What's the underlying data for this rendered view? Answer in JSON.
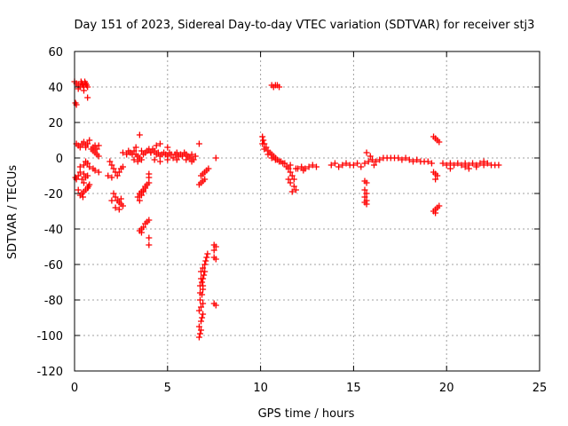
{
  "chart_data": {
    "type": "scatter",
    "title": "Day 151 of 2023, Sidereal Day-to-day VTEC variation (SDTVAR) for receiver stj3",
    "xlabel": "GPS time / hours",
    "ylabel": "SDTVAR / TECUs",
    "xlim": [
      0,
      25
    ],
    "ylim": [
      -120,
      60
    ],
    "xticks": [
      0,
      5,
      10,
      15,
      20,
      25
    ],
    "yticks": [
      -120,
      -100,
      -80,
      -60,
      -40,
      -20,
      0,
      20,
      40,
      60
    ],
    "xtick_labels": [
      "0",
      "5",
      "10",
      "15",
      "20",
      "25"
    ],
    "ytick_labels": [
      "-120",
      "-100",
      "-80",
      "-60",
      "-40",
      "-20",
      "0",
      "20",
      "40",
      "60"
    ],
    "grid": true,
    "marker": "+",
    "color": "#ff0000",
    "series": [
      {
        "name": "SDTVAR",
        "points": [
          [
            0.0,
            43
          ],
          [
            0.1,
            42
          ],
          [
            0.2,
            41
          ],
          [
            0.3,
            40
          ],
          [
            0.35,
            43
          ],
          [
            0.4,
            42
          ],
          [
            0.45,
            41
          ],
          [
            0.5,
            40
          ],
          [
            0.55,
            43
          ],
          [
            0.6,
            42
          ],
          [
            0.65,
            41
          ],
          [
            0.7,
            40
          ],
          [
            0.2,
            39
          ],
          [
            0.5,
            38
          ],
          [
            0.7,
            34
          ],
          [
            0.05,
            31
          ],
          [
            0.1,
            30
          ],
          [
            0.1,
            8
          ],
          [
            0.2,
            7
          ],
          [
            0.3,
            6
          ],
          [
            0.4,
            8
          ],
          [
            0.5,
            9
          ],
          [
            0.6,
            7
          ],
          [
            0.7,
            8
          ],
          [
            0.8,
            10
          ],
          [
            0.6,
            6
          ],
          [
            0.2,
            -10
          ],
          [
            0.3,
            -8
          ],
          [
            0.4,
            -12
          ],
          [
            0.5,
            -9
          ],
          [
            0.6,
            -11
          ],
          [
            0.7,
            -10
          ],
          [
            0.5,
            -4
          ],
          [
            0.6,
            -2
          ],
          [
            0.7,
            -3
          ],
          [
            0.3,
            -5
          ],
          [
            0.1,
            -12
          ],
          [
            0.05,
            -11
          ],
          [
            0.3,
            -21
          ],
          [
            0.4,
            -20
          ],
          [
            0.5,
            -19
          ],
          [
            0.6,
            -18
          ],
          [
            0.7,
            -17
          ],
          [
            0.75,
            -16
          ],
          [
            0.8,
            -15
          ],
          [
            0.5,
            -14
          ],
          [
            0.2,
            -18
          ],
          [
            0.45,
            -22
          ],
          [
            0.9,
            5
          ],
          [
            1.0,
            4
          ],
          [
            1.1,
            3
          ],
          [
            1.2,
            5
          ],
          [
            1.3,
            7
          ],
          [
            1.2,
            2
          ],
          [
            1.3,
            1
          ],
          [
            1.1,
            7
          ],
          [
            1.0,
            6
          ],
          [
            0.8,
            -5
          ],
          [
            1.0,
            -6
          ],
          [
            1.1,
            -7
          ],
          [
            1.3,
            -8
          ],
          [
            1.9,
            -2
          ],
          [
            2.0,
            -4
          ],
          [
            2.1,
            -6
          ],
          [
            2.2,
            -8
          ],
          [
            2.3,
            -10
          ],
          [
            2.4,
            -8
          ],
          [
            2.5,
            -6
          ],
          [
            2.6,
            -5
          ],
          [
            1.8,
            -10
          ],
          [
            2.0,
            -11
          ],
          [
            2.1,
            -20
          ],
          [
            2.2,
            -22
          ],
          [
            2.3,
            -24
          ],
          [
            2.4,
            -25
          ],
          [
            2.5,
            -26
          ],
          [
            2.6,
            -27
          ],
          [
            2.2,
            -28
          ],
          [
            2.4,
            -29
          ],
          [
            2.5,
            -23
          ],
          [
            2.0,
            -24
          ],
          [
            2.6,
            3
          ],
          [
            2.8,
            2
          ],
          [
            2.9,
            4
          ],
          [
            3.0,
            3
          ],
          [
            3.1,
            2
          ],
          [
            3.2,
            4
          ],
          [
            3.3,
            2
          ],
          [
            3.4,
            1
          ],
          [
            3.5,
            0
          ],
          [
            3.6,
            4
          ],
          [
            3.7,
            2
          ],
          [
            3.8,
            3
          ],
          [
            3.9,
            4
          ],
          [
            4.0,
            5
          ],
          [
            4.1,
            3
          ],
          [
            3.2,
            -1
          ],
          [
            3.4,
            -2
          ],
          [
            3.6,
            -1
          ],
          [
            3.5,
            13
          ],
          [
            3.3,
            6
          ],
          [
            3.4,
            -22
          ],
          [
            3.5,
            -20
          ],
          [
            3.6,
            -19
          ],
          [
            3.7,
            -18
          ],
          [
            3.8,
            -16
          ],
          [
            3.9,
            -15
          ],
          [
            4.0,
            -14
          ],
          [
            3.5,
            -24
          ],
          [
            3.6,
            -21
          ],
          [
            3.7,
            -19
          ],
          [
            3.8,
            -17
          ],
          [
            4.0,
            -9
          ],
          [
            4.0,
            -11
          ],
          [
            3.5,
            -41
          ],
          [
            3.6,
            -40
          ],
          [
            3.7,
            -39
          ],
          [
            3.8,
            -37
          ],
          [
            3.9,
            -36
          ],
          [
            4.0,
            -35
          ],
          [
            3.6,
            -42
          ],
          [
            4.0,
            -45
          ],
          [
            4.0,
            -49
          ],
          [
            4.1,
            3
          ],
          [
            4.2,
            5
          ],
          [
            4.3,
            4
          ],
          [
            4.4,
            2
          ],
          [
            4.5,
            3
          ],
          [
            4.6,
            1
          ],
          [
            4.7,
            2
          ],
          [
            4.8,
            3
          ],
          [
            4.9,
            2
          ],
          [
            5.0,
            1
          ],
          [
            5.1,
            3
          ],
          [
            5.2,
            2
          ],
          [
            5.3,
            0
          ],
          [
            5.4,
            2
          ],
          [
            5.5,
            3
          ],
          [
            5.6,
            1
          ],
          [
            5.7,
            2
          ],
          [
            5.8,
            1
          ],
          [
            5.9,
            3
          ],
          [
            6.0,
            2
          ],
          [
            6.1,
            1
          ],
          [
            6.2,
            0
          ],
          [
            6.3,
            2
          ],
          [
            6.4,
            -1
          ],
          [
            6.5,
            1
          ],
          [
            4.3,
            -1
          ],
          [
            4.6,
            -2
          ],
          [
            5.0,
            -1
          ],
          [
            5.5,
            -1
          ],
          [
            6.0,
            -1
          ],
          [
            6.3,
            -2
          ],
          [
            4.4,
            7
          ],
          [
            4.6,
            8
          ],
          [
            5.0,
            6
          ],
          [
            6.7,
            8
          ],
          [
            6.7,
            -15
          ],
          [
            6.8,
            -14
          ],
          [
            6.9,
            -13
          ],
          [
            7.0,
            -12
          ],
          [
            6.8,
            -10
          ],
          [
            6.9,
            -9
          ],
          [
            7.0,
            -8
          ],
          [
            7.1,
            -7
          ],
          [
            7.2,
            -6
          ],
          [
            7.6,
            0
          ],
          [
            6.7,
            -101
          ],
          [
            6.75,
            -99
          ],
          [
            6.8,
            -97
          ],
          [
            6.7,
            -95
          ],
          [
            6.8,
            -92
          ],
          [
            6.85,
            -90
          ],
          [
            6.9,
            -88
          ],
          [
            6.7,
            -86
          ],
          [
            6.8,
            -84
          ],
          [
            6.9,
            -82
          ],
          [
            6.75,
            -80
          ],
          [
            6.85,
            -77
          ],
          [
            6.9,
            -74
          ],
          [
            6.75,
            -72
          ],
          [
            6.85,
            -70
          ],
          [
            6.9,
            -68
          ],
          [
            6.95,
            -66
          ],
          [
            6.8,
            -64
          ],
          [
            6.9,
            -62
          ],
          [
            7.0,
            -60
          ],
          [
            7.05,
            -58
          ],
          [
            7.1,
            -56
          ],
          [
            7.15,
            -54
          ],
          [
            6.75,
            -76
          ],
          [
            6.8,
            -68
          ],
          [
            6.9,
            -72
          ],
          [
            7.0,
            -64
          ],
          [
            7.5,
            -49
          ],
          [
            7.6,
            -50
          ],
          [
            7.5,
            -52
          ],
          [
            7.6,
            -57
          ],
          [
            7.5,
            -56
          ],
          [
            7.5,
            -82
          ],
          [
            7.6,
            -83
          ],
          [
            10.6,
            41
          ],
          [
            10.7,
            40
          ],
          [
            10.8,
            41
          ],
          [
            10.9,
            41
          ],
          [
            11.0,
            40
          ],
          [
            10.1,
            12
          ],
          [
            10.15,
            10
          ],
          [
            10.2,
            8
          ],
          [
            10.3,
            6
          ],
          [
            10.4,
            4
          ],
          [
            10.5,
            3
          ],
          [
            10.6,
            2
          ],
          [
            10.7,
            1
          ],
          [
            10.8,
            0
          ],
          [
            10.9,
            -1
          ],
          [
            11.0,
            -2
          ],
          [
            11.1,
            -2
          ],
          [
            11.2,
            -3
          ],
          [
            11.3,
            -3
          ],
          [
            10.1,
            8
          ],
          [
            10.2,
            5
          ],
          [
            10.4,
            2
          ],
          [
            10.6,
            0
          ],
          [
            10.8,
            -1
          ],
          [
            11.4,
            -5
          ],
          [
            11.5,
            -6
          ],
          [
            11.6,
            -8
          ],
          [
            11.7,
            -10
          ],
          [
            11.8,
            -12
          ],
          [
            11.5,
            -12
          ],
          [
            11.6,
            -14
          ],
          [
            11.8,
            -16
          ],
          [
            11.9,
            -18
          ],
          [
            11.7,
            -19
          ],
          [
            11.9,
            -6
          ],
          [
            11.6,
            -4
          ],
          [
            12.0,
            -6
          ],
          [
            12.2,
            -5
          ],
          [
            12.4,
            -6
          ],
          [
            12.6,
            -5
          ],
          [
            12.8,
            -4
          ],
          [
            13.0,
            -5
          ],
          [
            12.3,
            -7
          ],
          [
            13.8,
            -4
          ],
          [
            14.0,
            -3
          ],
          [
            14.2,
            -5
          ],
          [
            14.4,
            -4
          ],
          [
            14.6,
            -3
          ],
          [
            14.8,
            -4
          ],
          [
            15.0,
            -4
          ],
          [
            15.2,
            -3
          ],
          [
            15.4,
            -5
          ],
          [
            15.6,
            -3
          ],
          [
            15.8,
            -2
          ],
          [
            16.0,
            -1
          ],
          [
            16.2,
            -2
          ],
          [
            16.4,
            -1
          ],
          [
            16.6,
            0
          ],
          [
            16.8,
            0
          ],
          [
            15.7,
            3
          ],
          [
            15.9,
            1
          ],
          [
            16.1,
            -4
          ],
          [
            15.6,
            -13
          ],
          [
            15.7,
            -14
          ],
          [
            15.6,
            -18
          ],
          [
            15.7,
            -20
          ],
          [
            15.6,
            -22
          ],
          [
            15.7,
            -24
          ],
          [
            15.6,
            -25
          ],
          [
            15.7,
            -26
          ],
          [
            17.0,
            0
          ],
          [
            17.2,
            0
          ],
          [
            17.4,
            0
          ],
          [
            17.6,
            -1
          ],
          [
            17.8,
            0
          ],
          [
            18.0,
            -1
          ],
          [
            18.2,
            -2
          ],
          [
            18.4,
            -1
          ],
          [
            18.6,
            -2
          ],
          [
            18.8,
            -2
          ],
          [
            19.0,
            -2
          ],
          [
            19.2,
            -3
          ],
          [
            19.3,
            12
          ],
          [
            19.4,
            11
          ],
          [
            19.5,
            10
          ],
          [
            19.6,
            9
          ],
          [
            19.3,
            -8
          ],
          [
            19.4,
            -9
          ],
          [
            19.5,
            -10
          ],
          [
            19.4,
            -12
          ],
          [
            19.3,
            -30
          ],
          [
            19.4,
            -29
          ],
          [
            19.5,
            -28
          ],
          [
            19.6,
            -27
          ],
          [
            19.4,
            -31
          ],
          [
            19.8,
            -3
          ],
          [
            20.0,
            -4
          ],
          [
            20.2,
            -3
          ],
          [
            20.4,
            -4
          ],
          [
            20.6,
            -3
          ],
          [
            20.8,
            -4
          ],
          [
            21.0,
            -5
          ],
          [
            21.2,
            -4
          ],
          [
            21.4,
            -3
          ],
          [
            21.6,
            -4
          ],
          [
            21.8,
            -3
          ],
          [
            22.0,
            -4
          ],
          [
            22.2,
            -3
          ],
          [
            22.4,
            -4
          ],
          [
            22.6,
            -4
          ],
          [
            22.8,
            -4
          ],
          [
            20.2,
            -6
          ],
          [
            21.0,
            -3
          ],
          [
            21.2,
            -6
          ],
          [
            21.6,
            -5
          ],
          [
            22.0,
            -2
          ]
        ]
      }
    ]
  }
}
